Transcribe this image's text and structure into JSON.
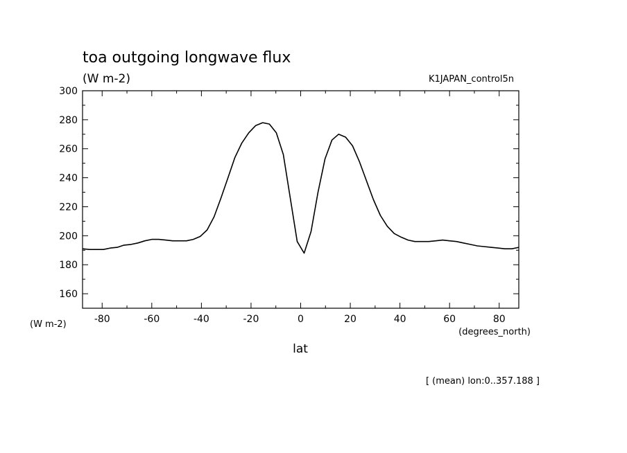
{
  "chart_data": {
    "type": "line",
    "title": "toa outgoing longwave flux",
    "units_label": "(W m-2)",
    "dataset": "K1JAPAN_control5n",
    "ylabel": "(W m-2)",
    "x_units_label": "(degrees_north)",
    "xlabel": "lat",
    "footnote": "[ (mean) lon:0..357.188 ]",
    "xlim": [
      -87.9,
      87.9
    ],
    "ylim": [
      150,
      300
    ],
    "xticks": [
      -80,
      -60,
      -40,
      -20,
      0,
      20,
      40,
      60,
      80
    ],
    "xtick_labels": [
      "-80",
      "-60",
      "-40",
      "-20",
      "0",
      "20",
      "40",
      "60",
      "80"
    ],
    "yticks": [
      160,
      180,
      200,
      220,
      240,
      260,
      280,
      300
    ],
    "ytick_labels": [
      "160",
      "180",
      "200",
      "220",
      "240",
      "260",
      "280",
      "300"
    ],
    "grid": false,
    "line_color": "#000000",
    "series": [
      {
        "x": [
          -87.9,
          -85.1,
          -82.3,
          -79.5,
          -76.7,
          -73.9,
          -71.2,
          -68.4,
          -65.6,
          -62.8,
          -60.0,
          -57.2,
          -54.4,
          -51.6,
          -48.8,
          -46.0,
          -43.3,
          -40.5,
          -37.7,
          -34.9,
          -32.1,
          -29.3,
          -26.5,
          -23.7,
          -20.9,
          -18.1,
          -15.3,
          -12.6,
          -9.8,
          -7.0,
          -4.2,
          -1.4,
          1.4,
          4.2,
          7.0,
          9.8,
          12.6,
          15.3,
          18.1,
          20.9,
          23.7,
          26.5,
          29.3,
          32.1,
          34.9,
          37.7,
          40.5,
          43.3,
          46.0,
          48.8,
          51.6,
          54.4,
          57.2,
          60.0,
          62.8,
          65.6,
          68.4,
          71.2,
          73.9,
          76.7,
          79.5,
          82.3,
          85.1,
          87.9
        ],
        "values": [
          191,
          190.5,
          190.5,
          190.5,
          191.5,
          192,
          193.5,
          194,
          195,
          196.5,
          197.5,
          197.5,
          197,
          196.5,
          196.5,
          196.5,
          197.5,
          199.5,
          204,
          213,
          226,
          240,
          254,
          264,
          271,
          276,
          278,
          277,
          271,
          256,
          226,
          196,
          188,
          203,
          230,
          253,
          266,
          270,
          268,
          262,
          251,
          238,
          225,
          214,
          206.5,
          201.5,
          199,
          197,
          196,
          196,
          196,
          196.5,
          197,
          196.5,
          196,
          195,
          194,
          193,
          192.5,
          192,
          191.5,
          191,
          191,
          192
        ]
      }
    ]
  }
}
